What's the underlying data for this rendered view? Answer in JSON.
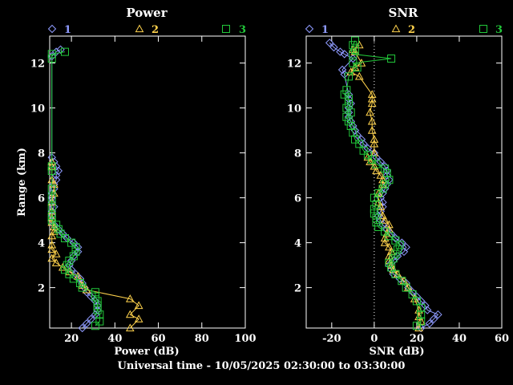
{
  "footer": "Universal time - 10/05/2025 02:30:00 to 03:30:00",
  "colors": {
    "background": "#000000",
    "axis": "#ffffff",
    "series1": "#8f9bff",
    "series2": "#ffd34d",
    "series3": "#22c83a"
  },
  "chart_data": [
    {
      "type": "line",
      "title": "Power",
      "xlabel": "Power (dB)",
      "ylabel": "Range (km)",
      "xlim": [
        10,
        100
      ],
      "ylim": [
        0.2,
        13.2
      ],
      "xticks": [
        20,
        40,
        60,
        80,
        100
      ],
      "yticks": [
        2,
        4,
        6,
        8,
        10,
        12
      ],
      "legend": [
        "1",
        "2",
        "3"
      ],
      "grid": false,
      "series": [
        {
          "name": "1",
          "marker": "diamond",
          "points": [
            [
              25,
              0.2
            ],
            [
              27,
              0.4
            ],
            [
              29,
              0.6
            ],
            [
              31,
              0.8
            ],
            [
              32,
              1.0
            ],
            [
              32,
              1.2
            ],
            [
              31,
              1.4
            ],
            [
              29,
              1.6
            ],
            [
              27,
              1.8
            ],
            [
              26,
              2.0
            ],
            [
              25,
              2.2
            ],
            [
              24,
              2.4
            ],
            [
              22,
              2.6
            ],
            [
              20,
              2.8
            ],
            [
              19,
              3.0
            ],
            [
              20,
              3.2
            ],
            [
              21,
              3.4
            ],
            [
              23,
              3.6
            ],
            [
              23,
              3.8
            ],
            [
              21,
              4.0
            ],
            [
              18,
              4.2
            ],
            [
              16,
              4.4
            ],
            [
              14,
              4.6
            ],
            [
              12,
              4.8
            ],
            [
              11,
              5.0
            ],
            [
              11,
              5.2
            ],
            [
              11,
              5.4
            ],
            [
              12,
              5.6
            ],
            [
              11,
              5.8
            ],
            [
              11,
              6.0
            ],
            [
              11,
              6.2
            ],
            [
              12,
              6.4
            ],
            [
              12,
              6.6
            ],
            [
              13,
              6.8
            ],
            [
              13,
              7.0
            ],
            [
              14,
              7.2
            ],
            [
              13,
              7.4
            ],
            [
              12,
              7.6
            ],
            [
              11,
              7.8
            ],
            [
              11,
              12.3
            ],
            [
              13,
              12.5
            ],
            [
              15,
              12.6
            ]
          ]
        },
        {
          "name": "2",
          "marker": "triangle",
          "points": [
            [
              47,
              0.2
            ],
            [
              51,
              0.6
            ],
            [
              47,
              0.8
            ],
            [
              51,
              1.2
            ],
            [
              47,
              1.5
            ],
            [
              27,
              1.9
            ],
            [
              25,
              2.1
            ],
            [
              23,
              2.5
            ],
            [
              19,
              2.7
            ],
            [
              16,
              2.9
            ],
            [
              13,
              3.1
            ],
            [
              11,
              3.3
            ],
            [
              13,
              3.5
            ],
            [
              11,
              3.7
            ],
            [
              11,
              3.9
            ],
            [
              11,
              4.3
            ],
            [
              12,
              4.5
            ],
            [
              12,
              4.7
            ],
            [
              11,
              4.9
            ],
            [
              11,
              5.1
            ],
            [
              11,
              5.4
            ],
            [
              11,
              5.8
            ],
            [
              12,
              6.2
            ],
            [
              12,
              6.6
            ],
            [
              11,
              6.8
            ],
            [
              11,
              7.4
            ],
            [
              11,
              7.6
            ]
          ]
        },
        {
          "name": "3",
          "marker": "square",
          "points": [
            [
              31,
              0.3
            ],
            [
              33,
              0.5
            ],
            [
              33,
              0.8
            ],
            [
              32,
              1.0
            ],
            [
              32,
              1.2
            ],
            [
              32,
              1.4
            ],
            [
              31,
              1.6
            ],
            [
              31,
              1.8
            ],
            [
              25,
              2.0
            ],
            [
              24,
              2.2
            ],
            [
              21,
              2.4
            ],
            [
              19,
              2.6
            ],
            [
              17,
              2.8
            ],
            [
              18,
              3.0
            ],
            [
              19,
              3.2
            ],
            [
              21,
              3.4
            ],
            [
              22,
              3.6
            ],
            [
              22,
              3.8
            ],
            [
              20,
              4.0
            ],
            [
              17,
              4.2
            ],
            [
              15,
              4.4
            ],
            [
              14,
              4.6
            ],
            [
              13,
              4.8
            ],
            [
              11,
              5.0
            ],
            [
              11,
              5.2
            ],
            [
              11,
              5.6
            ],
            [
              11,
              6.0
            ],
            [
              11,
              6.4
            ],
            [
              11,
              7.2
            ],
            [
              11,
              7.4
            ],
            [
              11,
              12.2
            ],
            [
              11,
              12.4
            ],
            [
              17,
              12.5
            ]
          ]
        }
      ]
    },
    {
      "type": "line",
      "title": "SNR",
      "xlabel": "SNR (dB)",
      "ylabel": "",
      "xlim": [
        -32,
        60
      ],
      "ylim": [
        0.2,
        13.2
      ],
      "xticks": [
        -20,
        0,
        20,
        40,
        60
      ],
      "yticks": [
        2,
        4,
        6,
        8,
        10,
        12
      ],
      "legend": [
        "1",
        "2",
        "3"
      ],
      "grid": false,
      "reference_line_x": 0,
      "series": [
        {
          "name": "1",
          "marker": "diamond",
          "points": [
            [
              22,
              0.2
            ],
            [
              26,
              0.4
            ],
            [
              28,
              0.6
            ],
            [
              30,
              0.8
            ],
            [
              25,
              1.0
            ],
            [
              24,
              1.2
            ],
            [
              22,
              1.4
            ],
            [
              20,
              1.6
            ],
            [
              18,
              1.8
            ],
            [
              16,
              2.0
            ],
            [
              15,
              2.2
            ],
            [
              12,
              2.4
            ],
            [
              9,
              2.6
            ],
            [
              8,
              2.8
            ],
            [
              7,
              3.0
            ],
            [
              9,
              3.2
            ],
            [
              11,
              3.4
            ],
            [
              14,
              3.6
            ],
            [
              15,
              3.8
            ],
            [
              13,
              4.0
            ],
            [
              10,
              4.2
            ],
            [
              8,
              4.4
            ],
            [
              6,
              4.6
            ],
            [
              4,
              4.8
            ],
            [
              3,
              5.0
            ],
            [
              2,
              5.2
            ],
            [
              3,
              5.4
            ],
            [
              4,
              5.6
            ],
            [
              4,
              5.8
            ],
            [
              3,
              6.0
            ],
            [
              4,
              6.2
            ],
            [
              5,
              6.4
            ],
            [
              6,
              6.6
            ],
            [
              7,
              6.8
            ],
            [
              6,
              7.0
            ],
            [
              6,
              7.2
            ],
            [
              5,
              7.4
            ],
            [
              3,
              7.6
            ],
            [
              1,
              7.8
            ],
            [
              0,
              8.0
            ],
            [
              -3,
              8.2
            ],
            [
              -5,
              8.4
            ],
            [
              -6,
              8.6
            ],
            [
              -8,
              8.8
            ],
            [
              -9,
              9.0
            ],
            [
              -10,
              9.2
            ],
            [
              -11,
              9.4
            ],
            [
              -12,
              9.6
            ],
            [
              -12,
              9.8
            ],
            [
              -12,
              10.0
            ],
            [
              -11,
              10.2
            ],
            [
              -12,
              10.4
            ],
            [
              -12,
              10.6
            ],
            [
              -14,
              11.5
            ],
            [
              -15,
              11.7
            ],
            [
              -10,
              12.2
            ],
            [
              -14,
              12.4
            ],
            [
              -16,
              12.5
            ],
            [
              -19,
              12.7
            ],
            [
              -21,
              12.9
            ]
          ]
        },
        {
          "name": "2",
          "marker": "triangle",
          "points": [
            [
              21,
              0.2
            ],
            [
              22,
              0.5
            ],
            [
              21,
              0.7
            ],
            [
              21,
              1.0
            ],
            [
              19,
              1.5
            ],
            [
              16,
              2.0
            ],
            [
              14,
              2.3
            ],
            [
              11,
              2.6
            ],
            [
              9,
              2.8
            ],
            [
              8,
              3.0
            ],
            [
              7,
              3.2
            ],
            [
              7,
              3.4
            ],
            [
              8,
              3.6
            ],
            [
              7,
              3.8
            ],
            [
              5,
              4.0
            ],
            [
              5,
              4.2
            ],
            [
              6,
              4.4
            ],
            [
              7,
              4.6
            ],
            [
              7,
              4.8
            ],
            [
              5,
              5.0
            ],
            [
              4,
              5.2
            ],
            [
              3,
              5.6
            ],
            [
              2,
              5.8
            ],
            [
              2,
              6.2
            ],
            [
              4,
              6.6
            ],
            [
              4,
              6.8
            ],
            [
              3,
              7.0
            ],
            [
              1,
              7.2
            ],
            [
              0,
              7.4
            ],
            [
              -2,
              7.6
            ],
            [
              -3,
              7.8
            ],
            [
              0,
              8.0
            ],
            [
              0,
              8.4
            ],
            [
              0,
              8.6
            ],
            [
              -1,
              9.0
            ],
            [
              -1,
              9.4
            ],
            [
              -2,
              9.8
            ],
            [
              -1,
              10.2
            ],
            [
              -1,
              10.4
            ],
            [
              -1,
              10.6
            ],
            [
              -7,
              11.4
            ],
            [
              -11,
              11.6
            ],
            [
              -9,
              11.8
            ],
            [
              -6,
              12.0
            ],
            [
              -9,
              12.5
            ],
            [
              -10,
              12.6
            ],
            [
              -7,
              12.8
            ]
          ]
        },
        {
          "name": "3",
          "marker": "square",
          "points": [
            [
              20,
              0.3
            ],
            [
              22,
              0.5
            ],
            [
              22,
              0.8
            ],
            [
              22,
              1.1
            ],
            [
              20,
              1.4
            ],
            [
              18,
              1.7
            ],
            [
              15,
              2.0
            ],
            [
              13,
              2.3
            ],
            [
              10,
              2.6
            ],
            [
              8,
              2.9
            ],
            [
              7,
              3.1
            ],
            [
              9,
              3.3
            ],
            [
              10,
              3.5
            ],
            [
              11,
              3.7
            ],
            [
              12,
              3.9
            ],
            [
              10,
              4.1
            ],
            [
              7,
              4.3
            ],
            [
              5,
              4.5
            ],
            [
              2,
              4.7
            ],
            [
              1,
              4.9
            ],
            [
              1,
              5.1
            ],
            [
              0,
              5.3
            ],
            [
              0,
              5.5
            ],
            [
              1,
              5.7
            ],
            [
              0,
              6.0
            ],
            [
              2,
              6.2
            ],
            [
              4,
              6.4
            ],
            [
              5,
              6.6
            ],
            [
              7,
              6.8
            ],
            [
              6,
              7.1
            ],
            [
              5,
              7.3
            ],
            [
              1,
              7.5
            ],
            [
              -1,
              7.7
            ],
            [
              -3,
              7.9
            ],
            [
              -5,
              8.1
            ],
            [
              -7,
              8.4
            ],
            [
              -9,
              8.6
            ],
            [
              -10,
              8.9
            ],
            [
              -11,
              9.2
            ],
            [
              -12,
              9.4
            ],
            [
              -13,
              9.6
            ],
            [
              -11,
              9.8
            ],
            [
              -13,
              10.0
            ],
            [
              -12,
              10.2
            ],
            [
              -12,
              10.4
            ],
            [
              -14,
              10.6
            ],
            [
              -13,
              10.8
            ],
            [
              -12,
              11.4
            ],
            [
              -8,
              11.8
            ],
            [
              -10,
              12.0
            ],
            [
              8,
              12.2
            ],
            [
              -10,
              12.4
            ],
            [
              -9,
              12.6
            ],
            [
              -10,
              12.8
            ],
            [
              -9,
              13.0
            ]
          ]
        }
      ]
    }
  ]
}
